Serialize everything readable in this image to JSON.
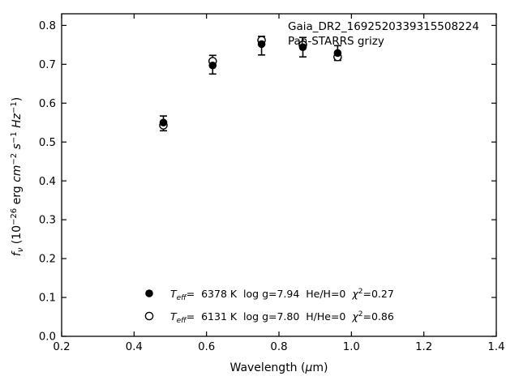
{
  "figure": {
    "annotation_line1": "Gaia_DR2_1692520339315508224",
    "annotation_line2": "Pan-STARRS grizy",
    "x_tick_labels": [
      "0.2",
      "0.4",
      "0.6",
      "0.8",
      "1.0",
      "1.2",
      "1.4"
    ],
    "y_tick_labels": [
      "0.0",
      "0.1",
      "0.2",
      "0.3",
      "0.4",
      "0.5",
      "0.6",
      "0.7",
      "0.8"
    ],
    "xlabel_parts": [
      "Wavelength (",
      "μ",
      "m)"
    ],
    "ylabel_parts": [
      "f",
      "ν",
      " (10",
      "−26",
      " erg ",
      "cm",
      "−2",
      " ",
      "s",
      "−1",
      " ",
      "Hz",
      "−1",
      ")"
    ]
  },
  "legend": {
    "rows": [
      {
        "marker": "filled-circle",
        "T": "T",
        "sub": "eff",
        "body": "=  6378 K  log g=7.94  He/H=0  ",
        "chi": "χ",
        "sup": "2",
        "tail": "=0.27"
      },
      {
        "marker": "open-circle",
        "T": "T",
        "sub": "eff",
        "body": "=  6131 K  log g=7.80  H/He=0  ",
        "chi": "χ",
        "sup": "2",
        "tail": "=0.86"
      }
    ]
  },
  "colors": {
    "foreground": "#000000",
    "background": "#ffffff"
  },
  "chart_data": {
    "type": "scatter",
    "title": "Gaia_DR2_1692520339315508224",
    "subtitle": "Pan-STARRS grizy",
    "xlabel": "Wavelength (μm)",
    "ylabel": "f_ν (10^−26 erg cm^−2 s^−1 Hz^−1)",
    "xlim": [
      0.2,
      1.4
    ],
    "ylim": [
      0.0,
      0.83
    ],
    "x_ticks": [
      0.2,
      0.4,
      0.6,
      0.8,
      1.0,
      1.2,
      1.4
    ],
    "y_ticks": [
      0.0,
      0.1,
      0.2,
      0.3,
      0.4,
      0.5,
      0.6,
      0.7,
      0.8
    ],
    "grid": false,
    "tick_direction": "in-all-four-sides",
    "legend_position": "inside lower-left",
    "bands": [
      "g",
      "r",
      "i",
      "z",
      "y"
    ],
    "x": [
      0.481,
      0.617,
      0.752,
      0.866,
      0.962
    ],
    "series": [
      {
        "name": "Teff= 6378 K  log g=7.94  He/H=0  chi2=0.27",
        "marker": "filled-circle",
        "values": [
          0.55,
          0.697,
          0.752,
          0.744,
          0.729
        ]
      },
      {
        "name": "Teff= 6131 K  log g=7.80  H/He=0  chi2=0.86",
        "marker": "open-circle",
        "values": [
          0.543,
          0.708,
          0.762,
          0.75,
          0.719
        ]
      }
    ],
    "errorbars": {
      "center": [
        0.548,
        0.699,
        0.748,
        0.744,
        0.729
      ],
      "err": [
        0.019,
        0.024,
        0.024,
        0.025,
        0.019
      ]
    }
  }
}
